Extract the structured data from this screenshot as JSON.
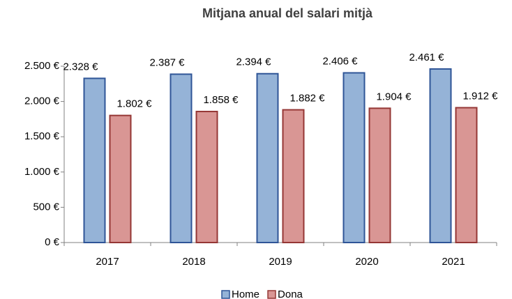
{
  "chart_data": {
    "type": "bar",
    "title": "Mitjana anual del salari mitjà",
    "categories": [
      "2017",
      "2018",
      "2019",
      "2020",
      "2021"
    ],
    "series": [
      {
        "name": "Home",
        "color": "#95b3d7",
        "stroke": "#2f5597",
        "values": [
          2328,
          2387,
          2394,
          2406,
          2461
        ],
        "value_labels": [
          "2.328 €",
          "2.387 €",
          "2.394 €",
          "2.406 €",
          "2.461 €"
        ]
      },
      {
        "name": "Dona",
        "color": "#d99694",
        "stroke": "#953735",
        "values": [
          1802,
          1858,
          1882,
          1904,
          1912
        ],
        "value_labels": [
          "1.802 €",
          "1.858 €",
          "1.882 €",
          "1.904 €",
          "1.912 €"
        ]
      }
    ],
    "ylim": [
      0,
      2500
    ],
    "yticks": [
      {
        "value": 0,
        "label": "0 €"
      },
      {
        "value": 500,
        "label": "500 €"
      },
      {
        "value": 1000,
        "label": "1.000 €"
      },
      {
        "value": 1500,
        "label": "1.500 €"
      },
      {
        "value": 2000,
        "label": "2.000 €"
      },
      {
        "value": 2500,
        "label": "2.500 €"
      }
    ],
    "grid": false,
    "legend": "bottom"
  }
}
